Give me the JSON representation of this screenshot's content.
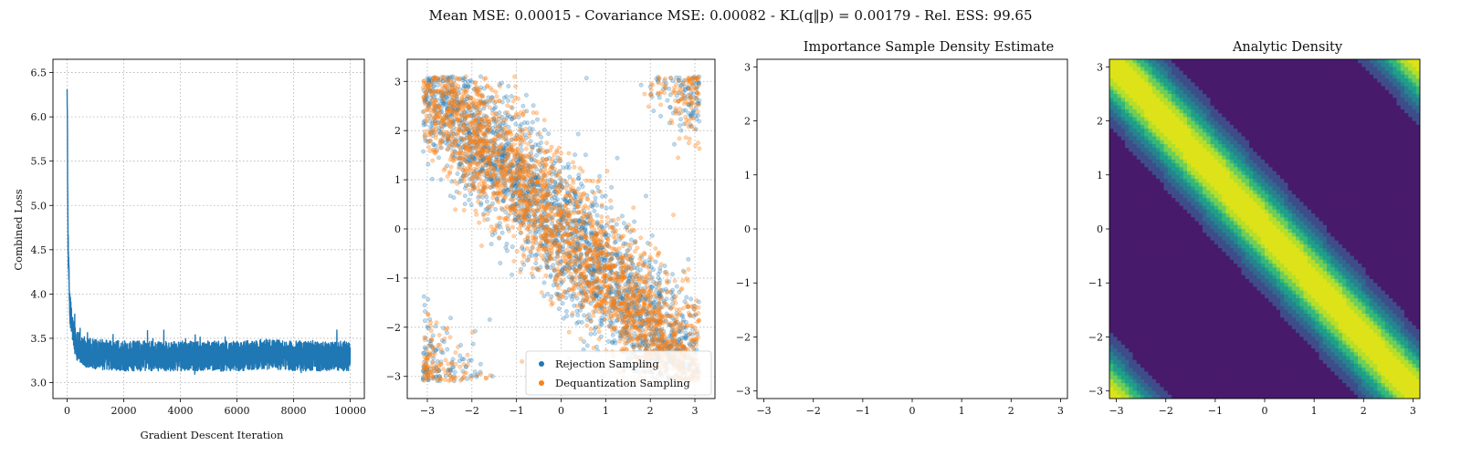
{
  "figure": {
    "suptitle": "Mean MSE: 0.00015 - Covariance MSE: 0.00082 - KL(q‖p) = 0.00179 - Rel. ESS: 99.65",
    "colors": {
      "blue": "#1f77b4",
      "orange": "#ff7f0e",
      "viridis": [
        "#481a6c",
        "#3e4c8a",
        "#31688e",
        "#26838f",
        "#1f9e89",
        "#35b779",
        "#6ece58",
        "#b5de2b",
        "#dde318"
      ]
    }
  },
  "chart_data": [
    {
      "type": "line",
      "title": "",
      "xlabel": "Gradient Descent Iteration",
      "ylabel": "Combined Loss",
      "xlim": [
        -500,
        10500
      ],
      "ylim": [
        2.82,
        6.65
      ],
      "xticks": [
        "0",
        "2000",
        "4000",
        "6000",
        "8000",
        "10000"
      ],
      "yticks": [
        "3.0",
        "3.5",
        "4.0",
        "4.5",
        "5.0",
        "5.5",
        "6.0",
        "6.5"
      ],
      "grid": true,
      "series": [
        {
          "color": "#1f77b4",
          "x": [
            0,
            10,
            20,
            30,
            40,
            60,
            80,
            100,
            150,
            200,
            300,
            400,
            600,
            1000,
            2000,
            4000,
            6000,
            7000,
            8000,
            10000
          ],
          "y": [
            6.48,
            5.9,
            5.2,
            4.7,
            4.5,
            4.2,
            4.0,
            3.85,
            3.7,
            3.6,
            3.45,
            3.4,
            3.35,
            3.32,
            3.3,
            3.3,
            3.3,
            3.32,
            3.3,
            3.3
          ],
          "noise_band": [
            2.95,
            3.65
          ]
        }
      ]
    },
    {
      "type": "scatter",
      "title": "",
      "xlim": [
        -3.45,
        3.45
      ],
      "ylim": [
        -3.45,
        3.45
      ],
      "xticks": [
        "−3",
        "−2",
        "−1",
        "0",
        "1",
        "2",
        "3"
      ],
      "yticks": [
        "−3",
        "−2",
        "−1",
        "0",
        "1",
        "2",
        "3"
      ],
      "grid": true,
      "legend": {
        "placement": "lower-right",
        "entries": [
          {
            "label": "Rejection Sampling",
            "color": "#1f77b4"
          },
          {
            "label": "Dequantization Sampling",
            "color": "#ff7f0e"
          }
        ]
      },
      "series": [
        {
          "name": "Rejection Sampling",
          "color": "#1f77b4",
          "n_points": 6000,
          "density": "exp(-(x+y)^2) on [-π, π]^2"
        },
        {
          "name": "Dequantization Sampling",
          "color": "#ff7f0e",
          "n_points": 6000,
          "density": "exp(-(x+y)^2) on [-π, π]^2"
        }
      ]
    },
    {
      "type": "heatmap",
      "title": "Importance Sample Density Estimate",
      "xlim": [
        -3.14,
        3.14
      ],
      "ylim": [
        -3.14,
        3.14
      ],
      "xticks": [
        "−3",
        "−2",
        "−1",
        "0",
        "1",
        "2",
        "3"
      ],
      "yticks": [
        "−3",
        "−2",
        "−1",
        "0",
        "1",
        "2",
        "3"
      ],
      "levels": 9,
      "band_width": 0.75
    },
    {
      "type": "heatmap",
      "title": "Analytic Density",
      "xlim": [
        -3.14,
        3.14
      ],
      "ylim": [
        -3.14,
        3.14
      ],
      "xticks": [
        "−3",
        "−2",
        "−1",
        "0",
        "1",
        "2",
        "3"
      ],
      "yticks": [
        "−3",
        "−2",
        "−1",
        "0",
        "1",
        "2",
        "3"
      ],
      "levels": 9,
      "band_width": 0.6
    }
  ]
}
